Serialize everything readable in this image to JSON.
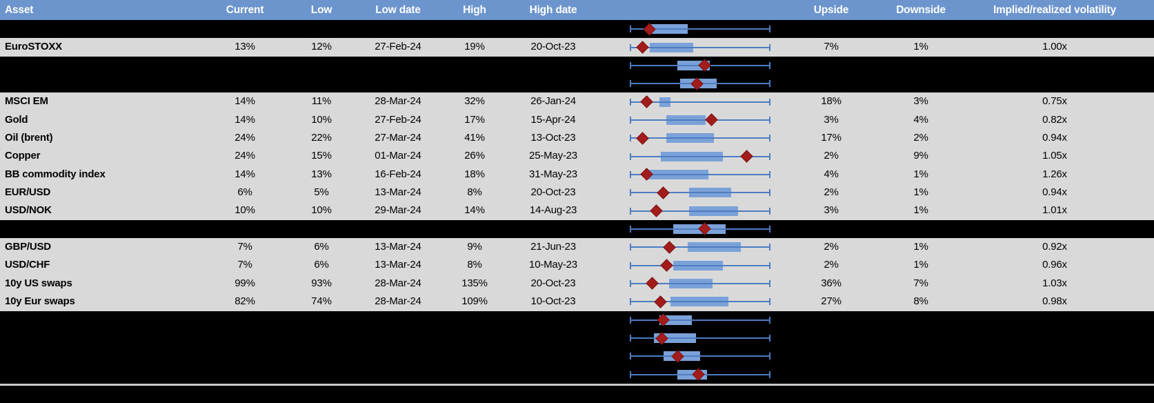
{
  "colors": {
    "header_blue": "#6c95ce",
    "row_gray": "#d9d9d9",
    "spacer_black": "#000000",
    "box_blue": "#7ba2d8",
    "whisker_blue": "#4d7cc0",
    "marker_red": "#a31c1c",
    "divider_gray": "#c9c9c9",
    "header_text": "#ffffff",
    "body_text": "#000000"
  },
  "chart_data": {
    "type": "table",
    "title": "Asset implied volatility ranges with box-whisker chart",
    "columns": [
      "Asset",
      "Current",
      "Low",
      "Low date",
      "High",
      "High date",
      "",
      "Upside",
      "Downside",
      "Implied/realized volatility"
    ],
    "boxplot_axis": {
      "normalized_range": [
        0,
        1
      ],
      "whiskers_span_full_range": true,
      "box_unit": "fraction of low-high range",
      "marker": "current value (red diamond)"
    },
    "rows": [
      {
        "kind": "spacer",
        "box": [
          0.14,
          0.41
        ],
        "marker": 0.14
      },
      {
        "kind": "data",
        "cells": {
          "asset": "EuroSTOXX",
          "current": "13%",
          "low": "12%",
          "low_date": "27-Feb-24",
          "high": "19%",
          "high_date": "20-Oct-23",
          "upside": "7%",
          "downside": "1%",
          "implied_realized_vol": "1.00x"
        },
        "box": [
          0.14,
          0.45
        ],
        "marker": 0.09
      },
      {
        "kind": "spacer",
        "box": [
          0.34,
          0.57
        ],
        "marker": 0.53
      },
      {
        "kind": "spacer",
        "box": [
          0.36,
          0.62
        ],
        "marker": 0.48
      },
      {
        "kind": "data",
        "cells": {
          "asset": "MSCI EM",
          "current": "14%",
          "low": "11%",
          "low_date": "28-Mar-24",
          "high": "32%",
          "high_date": "26-Jan-24",
          "upside": "18%",
          "downside": "3%",
          "implied_realized_vol": "0.75x"
        },
        "box": [
          0.21,
          0.29
        ],
        "marker": 0.12
      },
      {
        "kind": "data",
        "cells": {
          "asset": "Gold",
          "current": "14%",
          "low": "10%",
          "low_date": "27-Feb-24",
          "high": "17%",
          "high_date": "15-Apr-24",
          "upside": "3%",
          "downside": "4%",
          "implied_realized_vol": "0.82x"
        },
        "box": [
          0.26,
          0.54
        ],
        "marker": 0.58
      },
      {
        "kind": "data",
        "cells": {
          "asset": "Oil (brent)",
          "current": "24%",
          "low": "22%",
          "low_date": "27-Mar-24",
          "high": "41%",
          "high_date": "13-Oct-23",
          "upside": "17%",
          "downside": "2%",
          "implied_realized_vol": "0.94x"
        },
        "box": [
          0.26,
          0.6
        ],
        "marker": 0.09
      },
      {
        "kind": "data",
        "cells": {
          "asset": "Copper",
          "current": "24%",
          "low": "15%",
          "low_date": "01-Mar-24",
          "high": "26%",
          "high_date": "25-May-23",
          "upside": "2%",
          "downside": "9%",
          "implied_realized_vol": "1.05x"
        },
        "box": [
          0.22,
          0.66
        ],
        "marker": 0.83
      },
      {
        "kind": "data",
        "cells": {
          "asset": "BB commodity index",
          "current": "14%",
          "low": "13%",
          "low_date": "16-Feb-24",
          "high": "18%",
          "high_date": "31-May-23",
          "upside": "4%",
          "downside": "1%",
          "implied_realized_vol": "1.26x"
        },
        "box": [
          0.13,
          0.56
        ],
        "marker": 0.12
      },
      {
        "kind": "data",
        "cells": {
          "asset": "EUR/USD",
          "current": "6%",
          "low": "5%",
          "low_date": "13-Mar-24",
          "high": "8%",
          "high_date": "20-Oct-23",
          "upside": "2%",
          "downside": "1%",
          "implied_realized_vol": "0.94x"
        },
        "box": [
          0.42,
          0.72
        ],
        "marker": 0.24
      },
      {
        "kind": "data",
        "cells": {
          "asset": "USD/NOK",
          "current": "10%",
          "low": "10%",
          "low_date": "29-Mar-24",
          "high": "14%",
          "high_date": "14-Aug-23",
          "upside": "3%",
          "downside": "1%",
          "implied_realized_vol": "1.01x"
        },
        "box": [
          0.42,
          0.77
        ],
        "marker": 0.19
      },
      {
        "kind": "spacer",
        "box": [
          0.31,
          0.68
        ],
        "marker": 0.53
      },
      {
        "kind": "data",
        "cells": {
          "asset": "GBP/USD",
          "current": "7%",
          "low": "6%",
          "low_date": "13-Mar-24",
          "high": "9%",
          "high_date": "21-Jun-23",
          "upside": "2%",
          "downside": "1%",
          "implied_realized_vol": "0.92x"
        },
        "box": [
          0.41,
          0.79
        ],
        "marker": 0.28
      },
      {
        "kind": "data",
        "cells": {
          "asset": "USD/CHF",
          "current": "7%",
          "low": "6%",
          "low_date": "13-Mar-24",
          "high": "8%",
          "high_date": "10-May-23",
          "upside": "2%",
          "downside": "1%",
          "implied_realized_vol": "0.96x"
        },
        "box": [
          0.31,
          0.66
        ],
        "marker": 0.26
      },
      {
        "kind": "data",
        "cells": {
          "asset": "10y US swaps",
          "current": "99%",
          "low": "93%",
          "low_date": "28-Mar-24",
          "high": "135%",
          "high_date": "20-Oct-23",
          "upside": "36%",
          "downside": "7%",
          "implied_realized_vol": "1.03x"
        },
        "box": [
          0.28,
          0.59
        ],
        "marker": 0.16
      },
      {
        "kind": "data",
        "cells": {
          "asset": "10y Eur swaps",
          "current": "82%",
          "low": "74%",
          "low_date": "28-Mar-24",
          "high": "109%",
          "high_date": "10-Oct-23",
          "upside": "27%",
          "downside": "8%",
          "implied_realized_vol": "0.98x"
        },
        "box": [
          0.29,
          0.7
        ],
        "marker": 0.22
      },
      {
        "kind": "spacer",
        "box": [
          0.21,
          0.44
        ],
        "marker": 0.24
      },
      {
        "kind": "spacer",
        "box": [
          0.17,
          0.47
        ],
        "marker": 0.23
      },
      {
        "kind": "spacer",
        "box": [
          0.24,
          0.5
        ],
        "marker": 0.34
      },
      {
        "kind": "spacer",
        "box": [
          0.34,
          0.55
        ],
        "marker": 0.49
      }
    ]
  }
}
